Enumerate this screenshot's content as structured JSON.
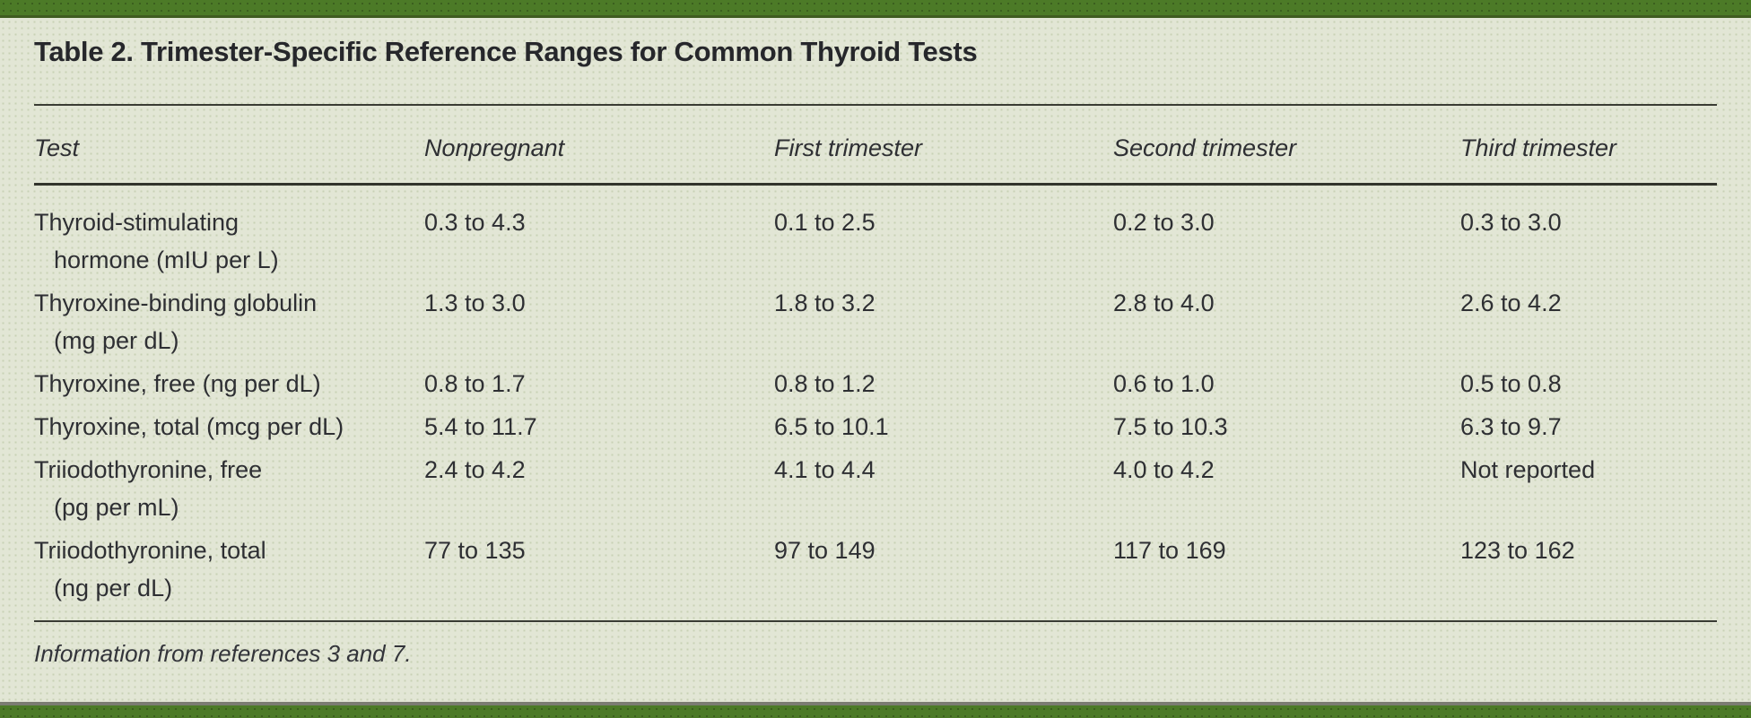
{
  "title": "Table 2. Trimester-Specific Reference Ranges for Common Thyroid Tests",
  "footnote": "Information from references 3 and 7.",
  "colors": {
    "accent_green": "#4c7a27",
    "page_background": "#e2e6d5",
    "rule_dark": "#32342c",
    "text": "#2e2f33"
  },
  "table": {
    "columns": [
      "Test",
      "Nonpregnant",
      "First trimester",
      "Second trimester",
      "Third trimester"
    ],
    "rows": [
      {
        "name": "Thyroid-stimulating",
        "unit": "hormone (mIU per L)",
        "values": [
          "0.3 to 4.3",
          "0.1 to 2.5",
          "0.2 to 3.0",
          "0.3 to 3.0"
        ]
      },
      {
        "name": "Thyroxine-binding globulin",
        "unit": "(mg per dL)",
        "values": [
          "1.3 to 3.0",
          "1.8 to 3.2",
          "2.8 to 4.0",
          "2.6 to 4.2"
        ]
      },
      {
        "name": "Thyroxine, free (ng per dL)",
        "unit": "",
        "values": [
          "0.8 to 1.7",
          "0.8 to 1.2",
          "0.6 to 1.0",
          "0.5 to 0.8"
        ]
      },
      {
        "name": "Thyroxine, total (mcg per dL)",
        "unit": "",
        "values": [
          "5.4 to 11.7",
          "6.5 to 10.1",
          "7.5 to 10.3",
          "6.3 to 9.7"
        ]
      },
      {
        "name": "Triiodothyronine, free",
        "unit": "(pg per mL)",
        "values": [
          "2.4 to 4.2",
          "4.1 to 4.4",
          "4.0 to 4.2",
          "Not reported"
        ]
      },
      {
        "name": "Triiodothyronine, total",
        "unit": "(ng per dL)",
        "values": [
          "77 to 135",
          "97 to 149",
          "117 to 169",
          "123 to 162"
        ]
      }
    ]
  }
}
